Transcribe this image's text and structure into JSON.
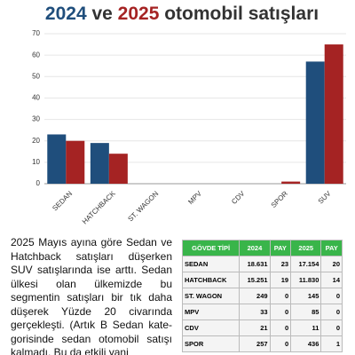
{
  "chart_data": {
    "type": "bar",
    "title": [
      "2024",
      " ve ",
      "2025",
      " otomobil satışları"
    ],
    "categories": [
      "SEDAN",
      "HATCHBACK",
      "ST. WAGON",
      "MPV",
      "CDV",
      "SPOR",
      "SUV"
    ],
    "series": [
      {
        "name": "2024",
        "color": "#1f4e7c",
        "values": [
          23,
          19,
          0,
          0,
          0,
          0,
          57
        ]
      },
      {
        "name": "2025",
        "color": "#a52323",
        "values": [
          20,
          14,
          0,
          0,
          0,
          1,
          65
        ]
      }
    ],
    "ylim": [
      0,
      70
    ],
    "yticks": [
      0,
      10,
      20,
      30,
      40,
      50,
      60,
      70
    ],
    "grid": true
  },
  "article": {
    "paragraph": "2025 Mayıs ayına göre Sedan ve Hatchback satışları düşerken SUV satışlarında ise arttı. Sedan ülkesi olan ülkemizde bu segmentin satışları bir tık daha düşerek Yüzde 20 civarında gerçekleşti. (Artık B Sedan kate-gorisinde sedan otomobil satışı kalmadı. Bu da etkili yani"
  },
  "table": {
    "header": [
      "GÖVDE TİPİ",
      "2024",
      "PAY",
      "2025",
      "PAY"
    ],
    "rows": [
      [
        "SEDAN",
        "18.631",
        "23",
        "17.154",
        "20"
      ],
      [
        "HATCHBACK",
        "15.251",
        "19",
        "11.830",
        "14"
      ],
      [
        "ST. WAGON",
        "249",
        "0",
        "145",
        "0"
      ],
      [
        "MPV",
        "33",
        "0",
        "85",
        "0"
      ],
      [
        "CDV",
        "21",
        "0",
        "11",
        "0"
      ],
      [
        "SPOR",
        "257",
        "0",
        "436",
        "1"
      ]
    ]
  }
}
